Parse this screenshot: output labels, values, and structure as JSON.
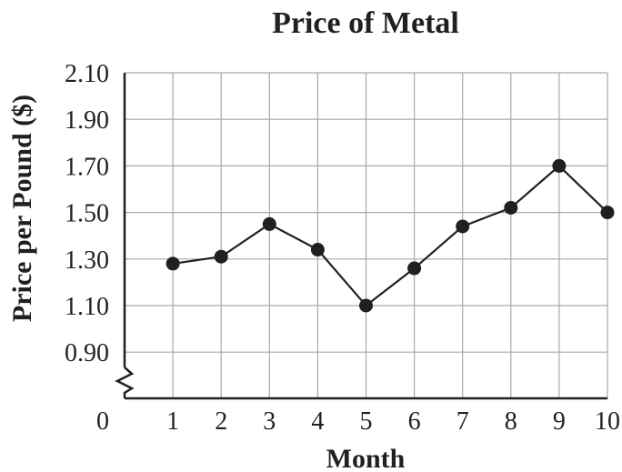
{
  "chart_data": {
    "type": "line",
    "title": "Price of Metal",
    "xlabel": "Month",
    "ylabel": "Price per Pound ($)",
    "x": [
      1,
      2,
      3,
      4,
      5,
      6,
      7,
      8,
      9,
      10
    ],
    "x_ticks": [
      "0",
      "1",
      "2",
      "3",
      "4",
      "5",
      "6",
      "7",
      "8",
      "9",
      "10"
    ],
    "y_ticks": [
      "0.90",
      "1.10",
      "1.30",
      "1.50",
      "1.70",
      "1.90",
      "2.10"
    ],
    "series": [
      {
        "values": [
          1.28,
          1.31,
          1.45,
          1.34,
          1.1,
          1.26,
          1.44,
          1.52,
          1.7,
          1.5
        ]
      }
    ],
    "ylim": [
      0.9,
      2.1
    ],
    "y_axis_break": true,
    "grid": true,
    "colors": {
      "line": "#231f20",
      "grid": "#a7a9ac"
    }
  }
}
